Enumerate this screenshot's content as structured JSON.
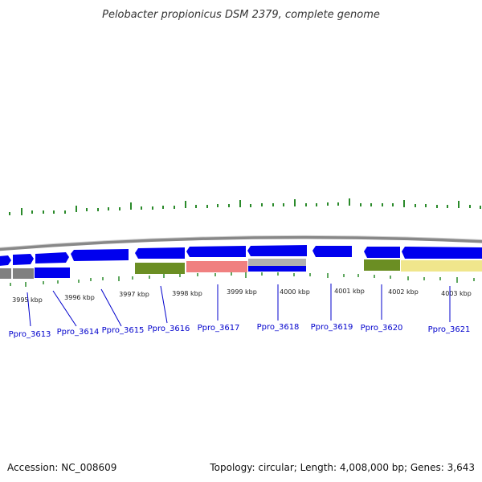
{
  "title": "Pelobacter propionicus DSM 2379, complete genome",
  "accession": "Accession: NC_008609",
  "summary": "Topology: circular; Length: 4,008,000 bp; Genes: 3,643",
  "colors": {
    "forward_gene": "#0000ee",
    "reverse_gene": "#0000ee",
    "backbone": "#808080",
    "tick": "#2a8a2a",
    "label": "#0000cc",
    "gc_olive": "#6b8e23",
    "gc_salmon": "#f08080",
    "gc_khaki": "#f0e68c",
    "gc_gray": "#a0a0a0"
  },
  "kbp_labels": [
    "3995 kbp",
    "3996 kbp",
    "3997 kbp",
    "3998 kbp",
    "3999 kbp",
    "4000 kbp",
    "4001 kbp",
    "4002 kbp",
    "4003 kbp"
  ],
  "genes": [
    {
      "name": "Ppro_3613"
    },
    {
      "name": "Ppro_3614"
    },
    {
      "name": "Ppro_3615"
    },
    {
      "name": "Ppro_3616"
    },
    {
      "name": "Ppro_3617"
    },
    {
      "name": "Ppro_3618"
    },
    {
      "name": "Ppro_3619"
    },
    {
      "name": "Ppro_3620"
    },
    {
      "name": "Ppro_3621"
    }
  ]
}
